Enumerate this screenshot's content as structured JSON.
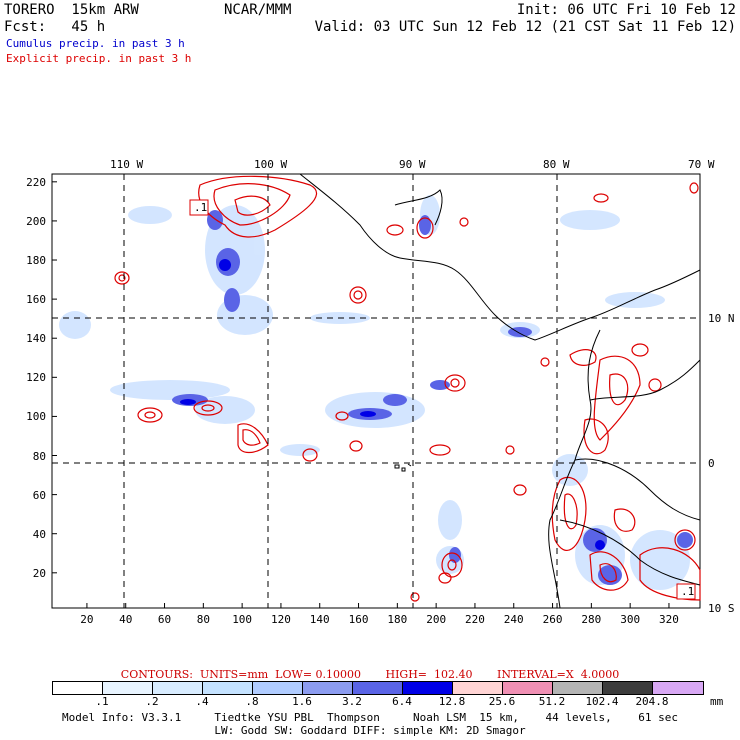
{
  "header": {
    "model": "TORERO  15km ARW",
    "org": "NCAR/MMM",
    "init": "Init: 06 UTC Fri 10 Feb 12",
    "fcst": "Fcst:   45 h",
    "valid": "Valid: 03 UTC Sun 12 Feb 12 (21 CST Sat 11 Feb 12)",
    "field1": "Cumulus precip. in past 3 h",
    "field2": "Explicit precip. in past 3 h"
  },
  "colors": {
    "cumulus": "#0000cc",
    "explicit": "#dd0000",
    "coast": "#000000"
  },
  "map": {
    "lon_labels_top": [
      "110 W",
      "100 W",
      "90 W",
      "80 W",
      "70 W"
    ],
    "lat_labels_right": [
      "10 N",
      "0",
      "10 S"
    ],
    "y_ticks": [
      "20",
      "40",
      "60",
      "80",
      "100",
      "120",
      "140",
      "160",
      "180",
      "200",
      "220"
    ],
    "x_ticks": [
      "20",
      "40",
      "60",
      "80",
      "100",
      "120",
      "140",
      "160",
      "180",
      "200",
      "220",
      "240",
      "260",
      "280",
      "300",
      "320"
    ],
    "box_labels": [
      ".1",
      ".1"
    ]
  },
  "colorbar": {
    "labels": [
      ".1",
      ".2",
      ".4",
      ".8",
      "1.6",
      "3.2",
      "6.4",
      "12.8",
      "25.6",
      "51.2",
      "102.4",
      "204.8"
    ],
    "unit": "mm",
    "colors": [
      "#ffffff",
      "#e8f4ff",
      "#d8ecff",
      "#c4e2ff",
      "#b0ccff",
      "#8c9cf0",
      "#5a64e6",
      "#0000e6",
      "#ffd4d4",
      "#f090b4",
      "#b4b4b4",
      "#3c3c3c",
      "#d8a8f4"
    ]
  },
  "footer": {
    "contours": "CONTOURS:  UNITS=mm  LOW= 0.10000       HIGH=  102.40       INTERVAL=X  4.0000",
    "info1": "Model Info: V3.3.1     Tiedtke YSU PBL  Thompson     Noah LSM  15 km,    44 levels,    61 sec",
    "info2": "LW: Godd SW: Goddard DIFF: simple KM: 2D Smagor"
  }
}
